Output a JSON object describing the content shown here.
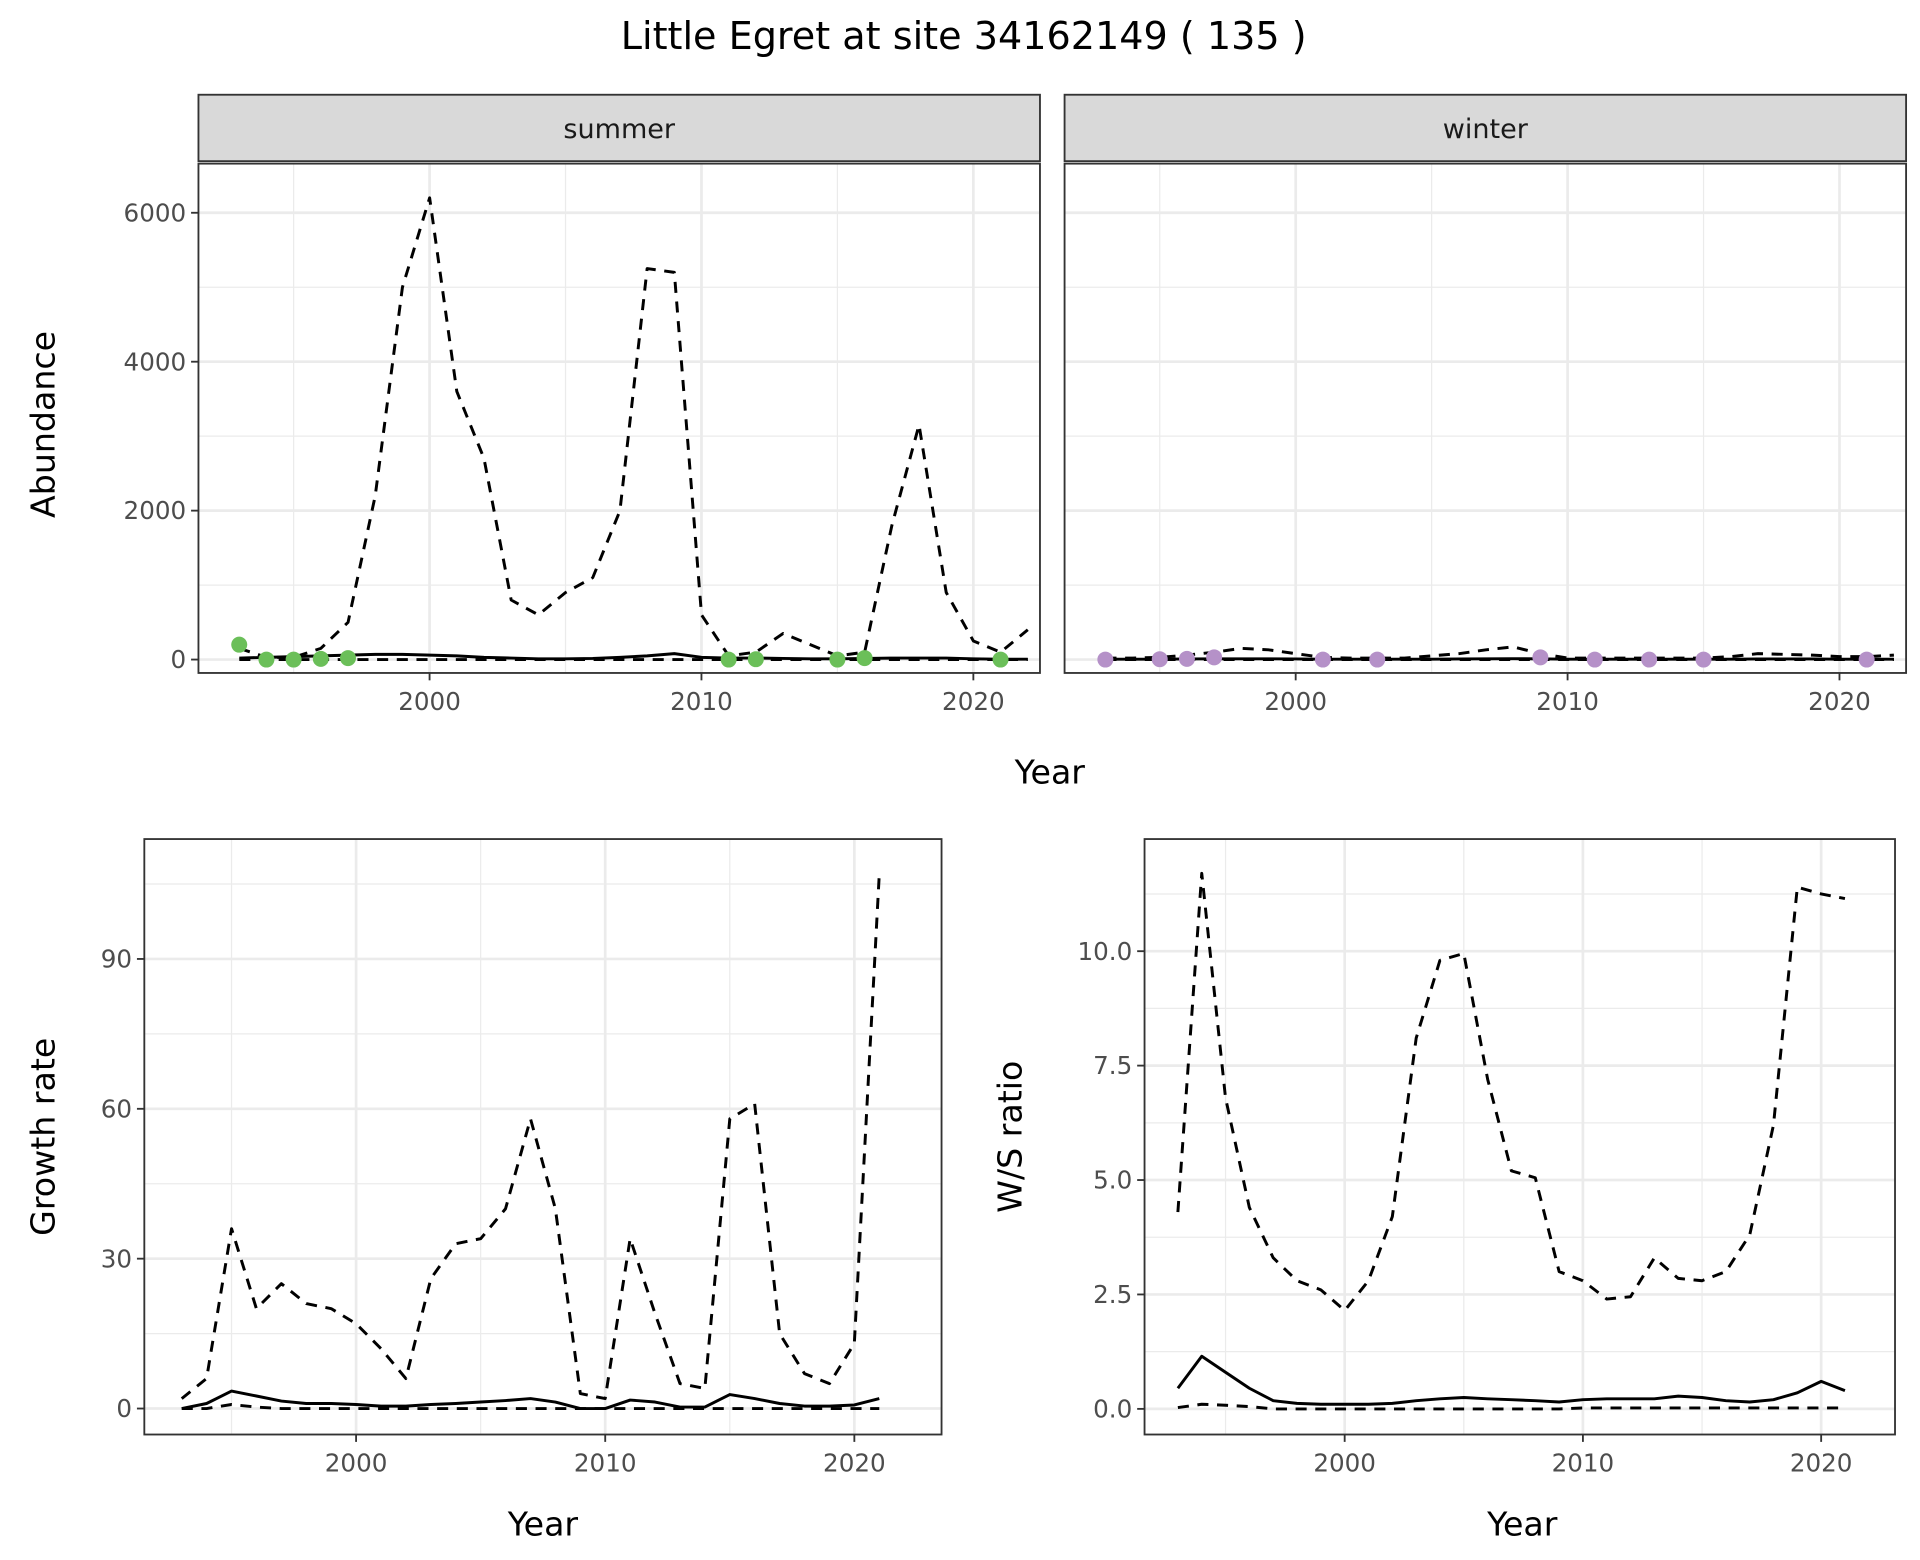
{
  "title": "Little Egret at site 34162149 ( 135 )",
  "colors": {
    "summer_points": "#6BBF59",
    "winter_points": "#B591C8",
    "strip_bg": "#D9D9D9",
    "grid": "#EBEBEB"
  },
  "chart_data": [
    {
      "type": "line",
      "panel": "summer",
      "strip_label": "summer",
      "xlabel": "Year",
      "ylabel": "Abundance",
      "xlim": [
        1991.5,
        2022.45
      ],
      "ylim": [
        -180,
        6660
      ],
      "xticks": [
        2000,
        2010,
        2020
      ],
      "yticks": [
        0,
        2000,
        4000,
        6000
      ],
      "x": [
        1993,
        1994,
        1995,
        1996,
        1997,
        1998,
        1999,
        2000,
        2001,
        2002,
        2003,
        2004,
        2005,
        2006,
        2007,
        2008,
        2009,
        2010,
        2011,
        2012,
        2013,
        2014,
        2015,
        2016,
        2017,
        2018,
        2019,
        2020,
        2021,
        2022
      ],
      "series": [
        {
          "name": "upper",
          "style": "dashed",
          "values": [
            150,
            30,
            30,
            150,
            500,
            2200,
            5000,
            6200,
            3600,
            2700,
            800,
            600,
            900,
            1100,
            2000,
            5250,
            5200,
            600,
            50,
            100,
            350,
            200,
            50,
            100,
            1800,
            3150,
            900,
            250,
            100,
            400
          ]
        },
        {
          "name": "estimate",
          "style": "solid",
          "values": [
            20,
            30,
            40,
            50,
            60,
            70,
            70,
            60,
            50,
            30,
            20,
            10,
            10,
            15,
            30,
            50,
            80,
            30,
            20,
            20,
            15,
            10,
            10,
            15,
            20,
            20,
            20,
            10,
            5,
            5
          ]
        },
        {
          "name": "lower",
          "style": "dashed",
          "values": [
            0,
            0,
            0,
            0,
            0,
            0,
            0,
            0,
            0,
            0,
            0,
            0,
            0,
            0,
            0,
            0,
            0,
            0,
            0,
            0,
            0,
            0,
            0,
            0,
            0,
            0,
            0,
            0,
            0,
            0
          ]
        }
      ],
      "points": {
        "x": [
          1993,
          1994,
          1995,
          1996,
          1997,
          2011,
          2012,
          2015,
          2016,
          2021
        ],
        "y": [
          200,
          0,
          0,
          10,
          20,
          0,
          5,
          0,
          20,
          0
        ]
      }
    },
    {
      "type": "line",
      "panel": "winter",
      "strip_label": "winter",
      "xlabel": "Year",
      "ylabel": "Abundance",
      "xlim": [
        1991.5,
        2022.45
      ],
      "ylim": [
        -180,
        6660
      ],
      "xticks": [
        2000,
        2010,
        2020
      ],
      "yticks": [
        0,
        2000,
        4000,
        6000
      ],
      "x": [
        1993,
        1994,
        1995,
        1996,
        1997,
        1998,
        1999,
        2000,
        2001,
        2002,
        2003,
        2004,
        2005,
        2006,
        2007,
        2008,
        2009,
        2010,
        2011,
        2012,
        2013,
        2014,
        2015,
        2016,
        2017,
        2018,
        2019,
        2020,
        2021,
        2022
      ],
      "series": [
        {
          "name": "upper",
          "style": "dashed",
          "values": [
            20,
            20,
            30,
            60,
            100,
            150,
            130,
            80,
            30,
            20,
            20,
            20,
            50,
            80,
            130,
            170,
            80,
            20,
            20,
            20,
            20,
            20,
            20,
            40,
            80,
            70,
            60,
            40,
            40,
            60
          ]
        },
        {
          "name": "estimate",
          "style": "solid",
          "values": [
            5,
            5,
            5,
            8,
            10,
            10,
            10,
            8,
            5,
            5,
            5,
            5,
            5,
            8,
            10,
            12,
            10,
            5,
            5,
            5,
            5,
            5,
            5,
            5,
            8,
            8,
            8,
            5,
            5,
            5
          ]
        },
        {
          "name": "lower",
          "style": "dashed",
          "values": [
            0,
            0,
            0,
            0,
            0,
            0,
            0,
            0,
            0,
            0,
            0,
            0,
            0,
            0,
            0,
            0,
            0,
            0,
            0,
            0,
            0,
            0,
            0,
            0,
            0,
            0,
            0,
            0,
            0,
            0
          ]
        }
      ],
      "points": {
        "x": [
          1993,
          1995,
          1996,
          1997,
          2001,
          2003,
          2009,
          2011,
          2013,
          2015,
          2021
        ],
        "y": [
          0,
          5,
          10,
          30,
          0,
          0,
          30,
          0,
          0,
          0,
          0
        ]
      }
    },
    {
      "type": "line",
      "panel": "growth",
      "xlabel": "Year",
      "ylabel": "Growth rate",
      "xlim": [
        1991.5,
        2023.5
      ],
      "ylim": [
        -5.2,
        114
      ],
      "xticks": [
        2000,
        2010,
        2020
      ],
      "yticks": [
        0,
        30,
        60,
        90
      ],
      "x": [
        1993,
        1994,
        1995,
        1996,
        1997,
        1998,
        1999,
        2000,
        2001,
        2002,
        2003,
        2004,
        2005,
        2006,
        2007,
        2008,
        2009,
        2010,
        2011,
        2012,
        2013,
        2014,
        2015,
        2016,
        2017,
        2018,
        2019,
        2020,
        2021
      ],
      "series": [
        {
          "name": "upper",
          "style": "dashed",
          "values": [
            2,
            6,
            36,
            20,
            25,
            21,
            20,
            17,
            12,
            6,
            26,
            33,
            34,
            40,
            58,
            40,
            3,
            2,
            34,
            19,
            5,
            4,
            58,
            61,
            15,
            7,
            5,
            13,
            107
          ]
        },
        {
          "name": "estimate",
          "style": "solid",
          "values": [
            0,
            1,
            3.5,
            2.5,
            1.5,
            1,
            1,
            0.8,
            0.5,
            0.5,
            0.8,
            1,
            1.3,
            1.6,
            2,
            1.3,
            0,
            0,
            1.7,
            1.3,
            0.3,
            0.3,
            2.8,
            2,
            1,
            0.5,
            0.5,
            0.7,
            2
          ]
        },
        {
          "name": "lower",
          "style": "dashed",
          "values": [
            0,
            0,
            0.8,
            0.3,
            0,
            0,
            0,
            0,
            0,
            0,
            0,
            0,
            0,
            0,
            0,
            0,
            0,
            0,
            0,
            0,
            0,
            0,
            0,
            0,
            0,
            0,
            0,
            0,
            0
          ]
        }
      ]
    },
    {
      "type": "line",
      "panel": "ws-ratio",
      "xlabel": "Year",
      "ylabel": "W/S ratio",
      "xlim": [
        1991.6,
        2023.1
      ],
      "ylim": [
        -0.56,
        12.45
      ],
      "xticks": [
        2000,
        2010,
        2020
      ],
      "yticks": [
        0,
        2.5,
        5,
        7.5,
        10
      ],
      "ytick_labels": [
        "0.0",
        "2.5",
        "5.0",
        "7.5",
        "10.0"
      ],
      "x": [
        1993,
        1994,
        1995,
        1996,
        1997,
        1998,
        1999,
        2000,
        2001,
        2002,
        2003,
        2004,
        2005,
        2006,
        2007,
        2008,
        2009,
        2010,
        2011,
        2012,
        2013,
        2014,
        2015,
        2016,
        2017,
        2018,
        2019,
        2020,
        2021
      ],
      "series": [
        {
          "name": "upper",
          "style": "dashed",
          "values": [
            4.3,
            11.7,
            6.8,
            4.4,
            3.3,
            2.8,
            2.6,
            2.15,
            2.8,
            4.2,
            8.1,
            9.8,
            9.95,
            7.2,
            5.2,
            5.05,
            3.0,
            2.8,
            2.4,
            2.45,
            3.3,
            2.85,
            2.8,
            3.0,
            3.8,
            6.2,
            11.4,
            11.25,
            11.15
          ]
        },
        {
          "name": "estimate",
          "style": "solid",
          "values": [
            0.45,
            1.15,
            0.8,
            0.45,
            0.18,
            0.12,
            0.1,
            0.1,
            0.1,
            0.12,
            0.18,
            0.22,
            0.25,
            0.22,
            0.2,
            0.18,
            0.15,
            0.2,
            0.22,
            0.22,
            0.22,
            0.28,
            0.25,
            0.18,
            0.15,
            0.2,
            0.35,
            0.6,
            0.4
          ]
        },
        {
          "name": "lower",
          "style": "dashed",
          "values": [
            0.03,
            0.1,
            0.08,
            0.05,
            0,
            0,
            0,
            0,
            0,
            0,
            0,
            0,
            0,
            0,
            0,
            0,
            0,
            0.02,
            0.02,
            0.02,
            0.02,
            0.02,
            0.02,
            0.02,
            0.02,
            0.02,
            0.02,
            0.02,
            0.02
          ]
        }
      ]
    }
  ]
}
